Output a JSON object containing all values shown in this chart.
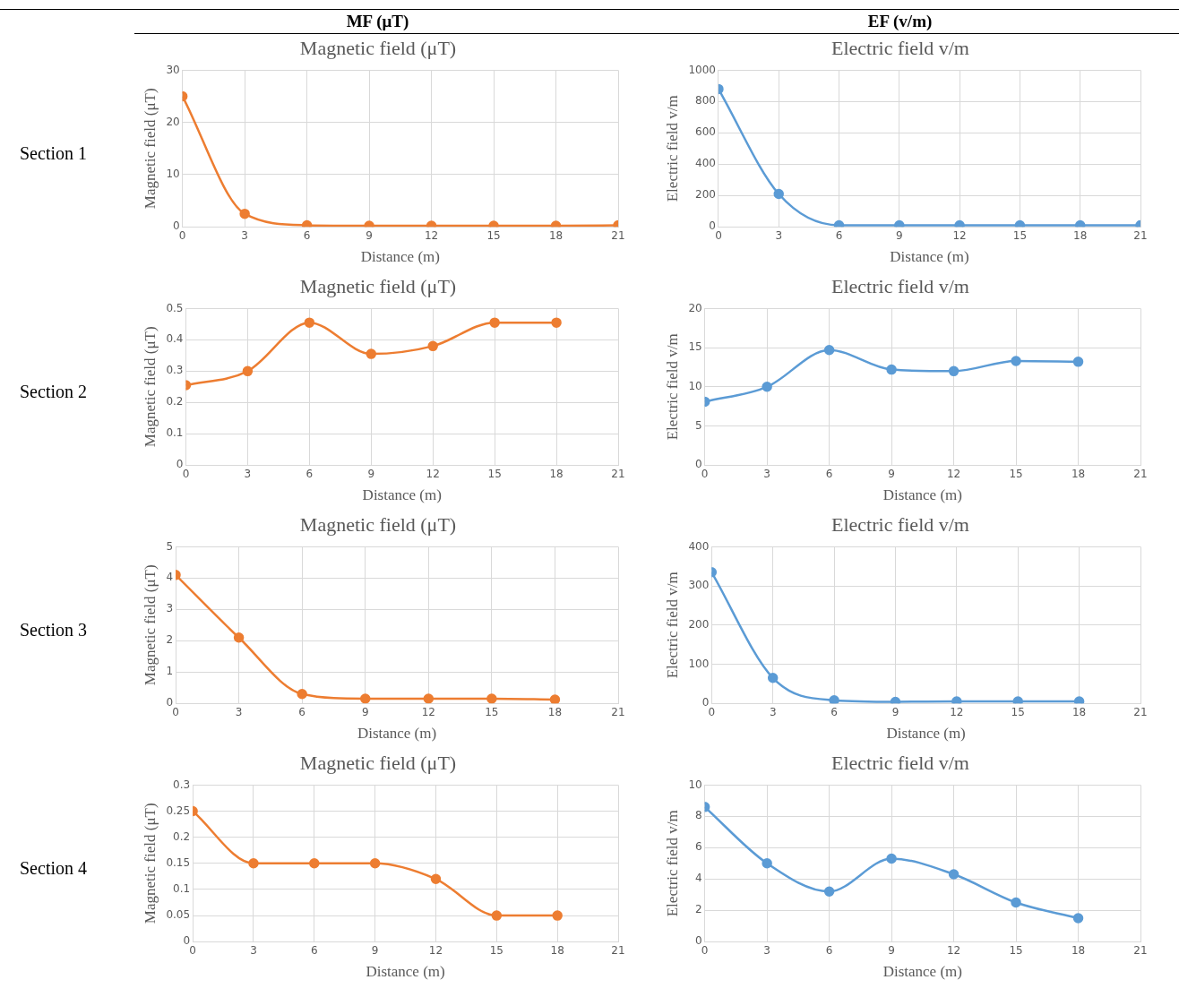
{
  "chart_data": [
    {
      "type": "other",
      "annotations": [
        "MF (μT)",
        "EF (v/m)",
        "Section 1",
        "Section 2",
        "Section 3",
        "Section 4"
      ]
    },
    {
      "type": "line",
      "title": "Magnetic field (μT)",
      "xlabel": "Distance (m)",
      "ylabel": "Magnetic field (μT)",
      "x": [
        0,
        3,
        6,
        9,
        12,
        15,
        18,
        21
      ],
      "series": [
        {
          "color": "#ed7d31",
          "values": [
            25,
            2.5,
            0.3,
            0.2,
            0.2,
            0.2,
            0.2,
            0.3
          ]
        }
      ],
      "xlim": [
        0,
        21
      ],
      "xticks": [
        0,
        3,
        6,
        9,
        12,
        15,
        18,
        21
      ],
      "ylim": [
        0,
        30
      ],
      "yticks": [
        0,
        10,
        20,
        30
      ],
      "grid": true,
      "marker": "circle",
      "legend": false
    },
    {
      "type": "line",
      "title": "Electric field v/m",
      "xlabel": "Distance (m)",
      "ylabel": "Electric field v/m",
      "x": [
        0,
        3,
        6,
        9,
        12,
        15,
        18,
        21
      ],
      "series": [
        {
          "color": "#5b9bd5",
          "values": [
            880,
            210,
            10,
            10,
            10,
            10,
            10,
            10
          ]
        }
      ],
      "xlim": [
        0,
        21
      ],
      "xticks": [
        0,
        3,
        6,
        9,
        12,
        15,
        18,
        21
      ],
      "ylim": [
        0,
        1000
      ],
      "yticks": [
        0,
        200,
        400,
        600,
        800,
        1000
      ],
      "grid": true,
      "marker": "circle",
      "legend": false
    },
    {
      "type": "line",
      "title": "Magnetic field (μT)",
      "xlabel": "Distance (m)",
      "ylabel": "Magnetic field (μT)",
      "x": [
        0,
        3,
        6,
        9,
        12,
        15,
        18
      ],
      "series": [
        {
          "color": "#ed7d31",
          "values": [
            0.255,
            0.3,
            0.455,
            0.355,
            0.38,
            0.455,
            0.455
          ]
        }
      ],
      "xlim": [
        0,
        21
      ],
      "xticks": [
        0,
        3,
        6,
        9,
        12,
        15,
        18,
        21
      ],
      "ylim": [
        0,
        0.5
      ],
      "yticks": [
        0,
        0.1,
        0.2,
        0.3,
        0.4,
        0.5
      ],
      "grid": true,
      "marker": "circle",
      "legend": false
    },
    {
      "type": "line",
      "title": "Electric field v/m",
      "xlabel": "Distance (m)",
      "ylabel": "Electric field v/m",
      "x": [
        0,
        3,
        6,
        9,
        12,
        15,
        18
      ],
      "series": [
        {
          "color": "#5b9bd5",
          "values": [
            8.1,
            10,
            14.7,
            12.2,
            12,
            13.3,
            13.2
          ]
        }
      ],
      "xlim": [
        0,
        21
      ],
      "xticks": [
        0,
        3,
        6,
        9,
        12,
        15,
        18,
        21
      ],
      "ylim": [
        0,
        20
      ],
      "yticks": [
        0,
        5,
        10,
        15,
        20
      ],
      "grid": true,
      "marker": "circle",
      "legend": false
    },
    {
      "type": "line",
      "title": "Magnetic field (μT)",
      "xlabel": "Distance (m)",
      "ylabel": "Magnetic field (μT)",
      "x": [
        0,
        3,
        6,
        9,
        12,
        15,
        18
      ],
      "series": [
        {
          "color": "#ed7d31",
          "values": [
            4.1,
            2.1,
            0.3,
            0.15,
            0.15,
            0.15,
            0.12
          ]
        }
      ],
      "xlim": [
        0,
        21
      ],
      "xticks": [
        0,
        3,
        6,
        9,
        12,
        15,
        18,
        21
      ],
      "ylim": [
        0,
        5
      ],
      "yticks": [
        0,
        1,
        2,
        3,
        4,
        5
      ],
      "grid": true,
      "marker": "circle",
      "legend": false
    },
    {
      "type": "line",
      "title": "Electric field v/m",
      "xlabel": "Distance (m)",
      "ylabel": "Electric field v/m",
      "x": [
        0,
        3,
        6,
        9,
        12,
        15,
        18
      ],
      "series": [
        {
          "color": "#5b9bd5",
          "values": [
            335,
            65,
            8,
            4,
            5,
            5,
            5
          ]
        }
      ],
      "xlim": [
        0,
        21
      ],
      "xticks": [
        0,
        3,
        6,
        9,
        12,
        15,
        18,
        21
      ],
      "ylim": [
        0,
        400
      ],
      "yticks": [
        0,
        100,
        200,
        300,
        400
      ],
      "grid": true,
      "marker": "circle",
      "legend": false
    },
    {
      "type": "line",
      "title": "Magnetic field (μT)",
      "xlabel": "Distance (m)",
      "ylabel": "Magnetic field (μT)",
      "x": [
        0,
        3,
        6,
        9,
        12,
        15,
        18
      ],
      "series": [
        {
          "color": "#ed7d31",
          "values": [
            0.25,
            0.15,
            0.15,
            0.15,
            0.12,
            0.05,
            0.05
          ]
        }
      ],
      "xlim": [
        0,
        21
      ],
      "xticks": [
        0,
        3,
        6,
        9,
        12,
        15,
        18,
        21
      ],
      "ylim": [
        0,
        0.3
      ],
      "yticks": [
        0,
        0.05,
        0.1,
        0.15,
        0.2,
        0.25,
        0.3
      ],
      "grid": true,
      "marker": "circle",
      "legend": false
    },
    {
      "type": "line",
      "title": "Electric field v/m",
      "xlabel": "Distance (m)",
      "ylabel": "Electric field v/m",
      "x": [
        0,
        3,
        6,
        9,
        12,
        15,
        18
      ],
      "series": [
        {
          "color": "#5b9bd5",
          "values": [
            8.6,
            5,
            3.2,
            5.3,
            4.3,
            2.5,
            1.5
          ]
        }
      ],
      "xlim": [
        0,
        21
      ],
      "xticks": [
        0,
        3,
        6,
        9,
        12,
        15,
        18,
        21
      ],
      "ylim": [
        0,
        10
      ],
      "yticks": [
        0,
        2,
        4,
        6,
        8,
        10
      ],
      "grid": true,
      "marker": "circle",
      "legend": false
    }
  ]
}
